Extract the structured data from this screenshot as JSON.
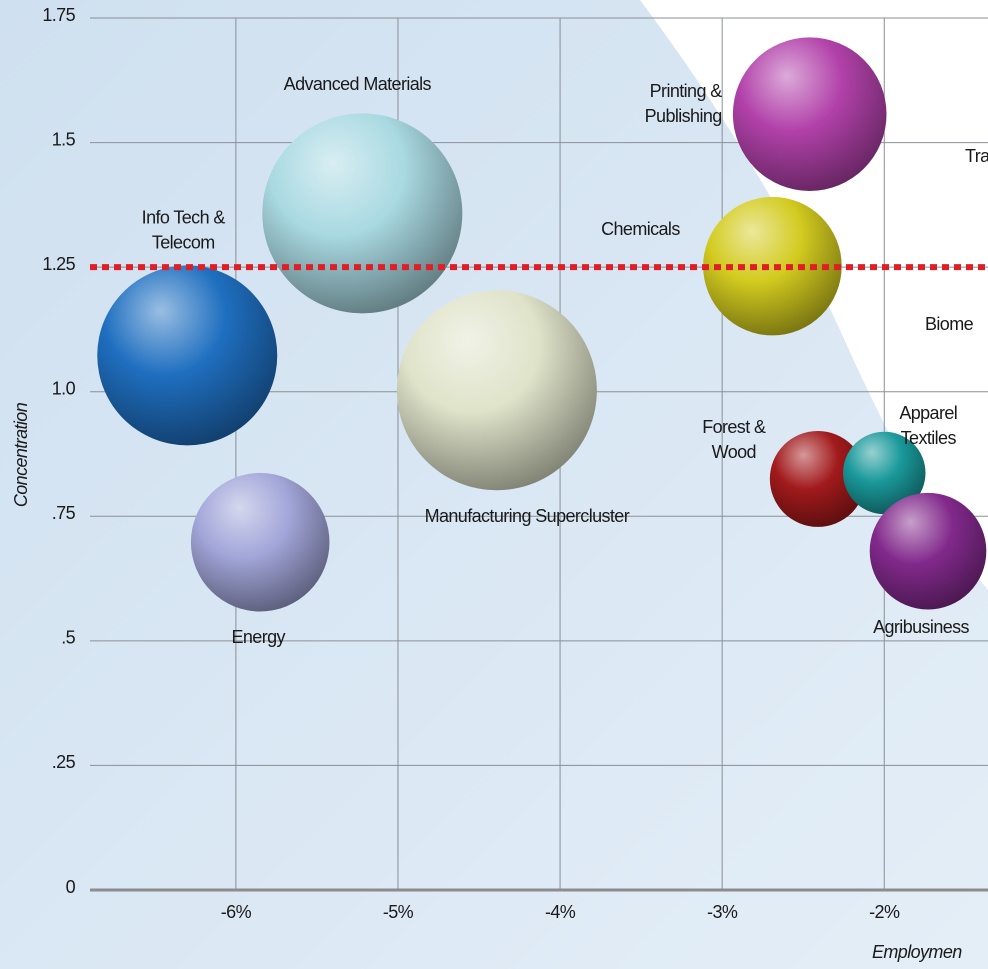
{
  "chart_data": {
    "type": "bubble",
    "y_label": "Concentration",
    "x_label": "Employmen",
    "xlim": [
      -6.9,
      -1.36
    ],
    "ylim": [
      0,
      1.75
    ],
    "xticks": [
      {
        "value": -6,
        "label": "-6%"
      },
      {
        "value": -5,
        "label": "-5%"
      },
      {
        "value": -4,
        "label": "-4%"
      },
      {
        "value": -3,
        "label": "-3%"
      },
      {
        "value": -2,
        "label": "-2%"
      }
    ],
    "yticks": [
      0,
      {
        "value": 0.25,
        "label": ".25"
      },
      {
        "value": 0.5,
        "label": ".5"
      },
      {
        "value": 0.75,
        "label": ".75"
      },
      {
        "value": 1.0,
        "label": "1.0"
      },
      1.25,
      1.5,
      1.75
    ],
    "grid": true,
    "reference_line": {
      "value": 1.25,
      "color": "#e01e26"
    },
    "series": [
      {
        "name": "Info Tech &\nTelecom",
        "color": "#1f6fc0",
        "x": [
          -6.3
        ],
        "y": [
          1.073
        ],
        "size": [
          81
        ]
      },
      {
        "name": "Advanced Materials",
        "color": "#a9d9e2",
        "x": [
          -5.22
        ],
        "y": [
          1.358
        ],
        "size": [
          100
        ]
      },
      {
        "name": "Manufacturing Supercluster",
        "color": "#dfe3c9",
        "x": [
          -4.39
        ],
        "y": [
          1.003
        ],
        "size": [
          100
        ]
      },
      {
        "name": "Energy",
        "color": "#a2a6d9",
        "x": [
          -5.85
        ],
        "y": [
          0.698
        ],
        "size": [
          48
        ]
      },
      {
        "name": "Printing &\nPublishing",
        "color": "#b241aa",
        "x": [
          -2.46
        ],
        "y": [
          1.557
        ],
        "size": [
          59
        ]
      },
      {
        "name": "Chemicals",
        "color": "#d3cb1f",
        "x": [
          -2.69
        ],
        "y": [
          1.252
        ],
        "size": [
          48
        ]
      },
      {
        "name": "Forest &\nWood",
        "color": "#a11a1c",
        "x": [
          -2.41
        ],
        "y": [
          0.825
        ],
        "size": [
          23
        ]
      },
      {
        "name": "Apparel\nTextiles",
        "color": "#1a999b",
        "x": [
          -2.0
        ],
        "y": [
          0.837
        ],
        "size": [
          17
        ]
      },
      {
        "name": "Agribusiness",
        "color": "#82298c",
        "x": [
          -1.73
        ],
        "y": [
          0.68
        ],
        "size": [
          34
        ]
      }
    ],
    "annotations": [
      "Tra",
      "Biome"
    ]
  }
}
